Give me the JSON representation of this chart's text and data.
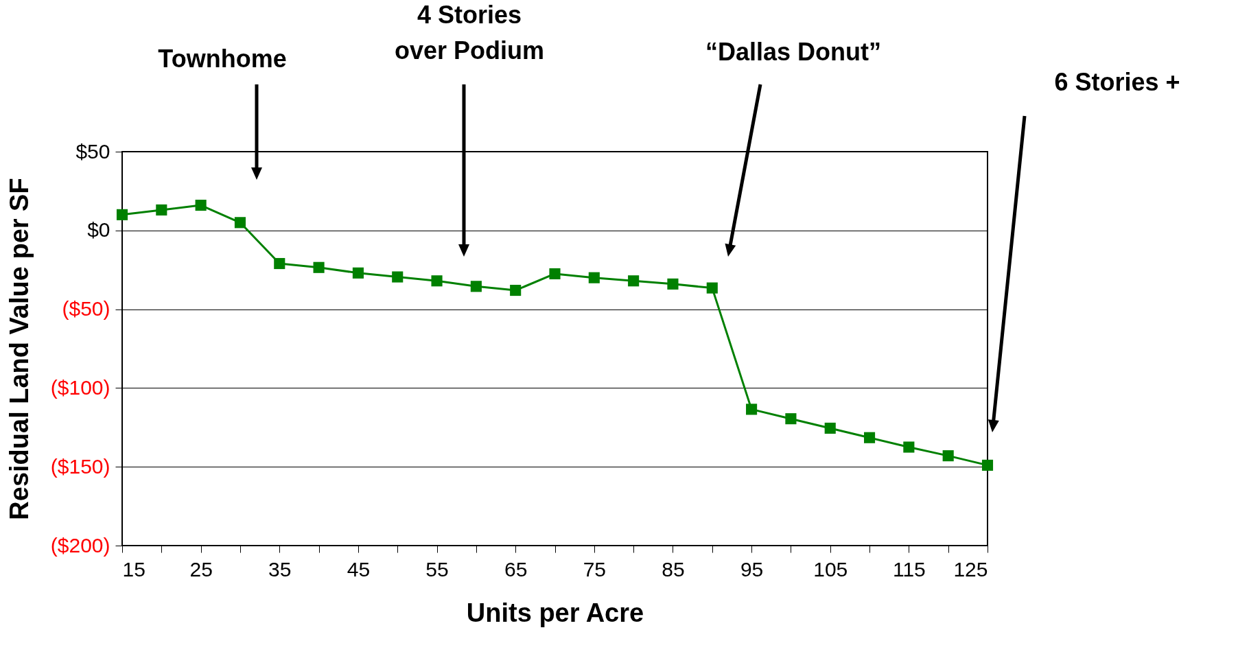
{
  "chart_data": {
    "type": "line",
    "xlabel": "Units per Acre",
    "ylabel": "Residual Land Value per SF",
    "x": [
      15,
      20,
      25,
      30,
      35,
      40,
      45,
      50,
      55,
      60,
      65,
      70,
      75,
      80,
      85,
      90,
      95,
      100,
      105,
      110,
      115,
      120,
      125
    ],
    "series": [
      {
        "color": "#008000",
        "values": [
          10,
          13,
          16,
          5,
          -21,
          -23.5,
          -27,
          -29.5,
          -32,
          -35.5,
          -38,
          -27.5,
          -30,
          -32,
          -34,
          -36.5,
          -113.5,
          -119.5,
          -125.5,
          -131.5,
          -137.5,
          -143,
          -149
        ]
      }
    ],
    "marker": "square",
    "line_style": "solid",
    "grid": "y",
    "xlim": [
      15,
      125
    ],
    "xticks": [
      15,
      {
        "value": 20,
        "label": null
      },
      25,
      {
        "value": 30,
        "label": null
      },
      35,
      {
        "value": 40,
        "label": null
      },
      45,
      {
        "value": 50,
        "label": null
      },
      55,
      {
        "value": 60,
        "label": null
      },
      65,
      {
        "value": 70,
        "label": null
      },
      75,
      {
        "value": 80,
        "label": null
      },
      85,
      {
        "value": 90,
        "label": null
      },
      95,
      {
        "value": 100,
        "label": null
      },
      105,
      {
        "value": 110,
        "label": null
      },
      115,
      {
        "value": 120,
        "label": null
      },
      125
    ],
    "ylim": [
      -200,
      50
    ],
    "yticks": [
      {
        "value": 50,
        "label": "$50"
      },
      {
        "value": 0,
        "label": "$0"
      },
      {
        "value": -50,
        "label": "($50)"
      },
      {
        "value": -100,
        "label": "($100)"
      },
      {
        "value": -150,
        "label": "($150)"
      },
      {
        "value": -200,
        "label": "($200)"
      }
    ],
    "annotations": [
      "Townhome",
      "4 Stories\nover Podium",
      "“Dallas Donut”",
      "6 Stories +"
    ]
  }
}
